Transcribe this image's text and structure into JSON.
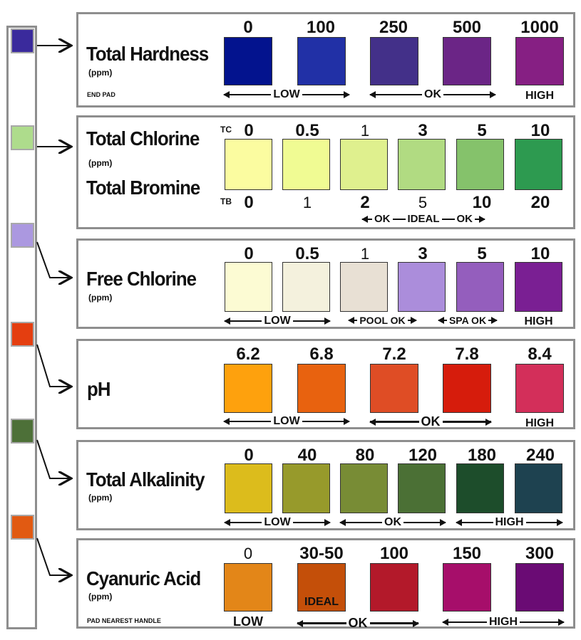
{
  "strip": {
    "pads": [
      {
        "name": "total-hardness",
        "color": "#3a2a9c"
      },
      {
        "name": "total-chlorine",
        "color": "#aedc8c"
      },
      {
        "name": "free-chlorine",
        "color": "#ab98e0"
      },
      {
        "name": "ph",
        "color": "#e43e10"
      },
      {
        "name": "total-alkalinity",
        "color": "#4d7038"
      },
      {
        "name": "cyanuric-acid",
        "color": "#e15a12"
      }
    ]
  },
  "panels": {
    "hardness": {
      "title": "Total Hardness",
      "unit": "(ppm)",
      "note": "END PAD",
      "values": [
        "0",
        "100",
        "250",
        "500",
        "1000"
      ],
      "colors": [
        "#03138e",
        "#2130a6",
        "#433089",
        "#6b2586",
        "#861f83"
      ],
      "ranges": {
        "low": "LOW",
        "ok": "OK",
        "high": "HIGH"
      }
    },
    "chlorine": {
      "title1": "Total Chlorine",
      "unit": "(ppm)",
      "title2": "Total Bromine",
      "tc_tag": "TC",
      "tb_tag": "TB",
      "tc_values": [
        "0",
        "0.5",
        "1",
        "3",
        "5",
        "10"
      ],
      "tb_values": [
        "0",
        "1",
        "2",
        "5",
        "10",
        "20"
      ],
      "colors": [
        "#fbfca0",
        "#f0fb93",
        "#dff08e",
        "#b1db82",
        "#85c26b",
        "#2d9a50"
      ],
      "range": {
        "ok1": "OK",
        "ideal": "IDEAL",
        "ok2": "OK"
      }
    },
    "free_chlorine": {
      "title": "Free Chlorine",
      "unit": "(ppm)",
      "values": [
        "0",
        "0.5",
        "1",
        "3",
        "5",
        "10"
      ],
      "colors": [
        "#fcfbd3",
        "#f4f1dd",
        "#e8e0d4",
        "#ab8ddb",
        "#945ebd",
        "#7a1f93"
      ],
      "ranges": {
        "low": "LOW",
        "pool": "POOL OK",
        "spa": "SPA OK",
        "high": "HIGH"
      }
    },
    "ph": {
      "title": "pH",
      "values": [
        "6.2",
        "6.8",
        "7.2",
        "7.8",
        "8.4"
      ],
      "colors": [
        "#fea10d",
        "#e8620f",
        "#df4d25",
        "#d61c0c",
        "#d32f5a"
      ],
      "ranges": {
        "low": "LOW",
        "ok": "OK",
        "high": "HIGH"
      }
    },
    "alkalinity": {
      "title": "Total Alkalinity",
      "unit": "(ppm)",
      "values": [
        "0",
        "40",
        "80",
        "120",
        "180",
        "240"
      ],
      "colors": [
        "#dcbc1c",
        "#979a2b",
        "#788c35",
        "#4b7035",
        "#1d4d2b",
        "#1e4250"
      ],
      "ranges": {
        "low": "LOW",
        "ok": "OK",
        "high": "HIGH"
      }
    },
    "cyanuric": {
      "title": "Cyanuric Acid",
      "unit": "(ppm)",
      "note": "PAD NEAREST HANDLE",
      "values": [
        "0",
        "30-50",
        "100",
        "150",
        "300"
      ],
      "colors": [
        "#e38618",
        "#c44f09",
        "#b3192a",
        "#a60e6a",
        "#6a0b74"
      ],
      "ideal_label": "IDEAL",
      "ranges": {
        "low": "LOW",
        "ok": "OK",
        "high": "HIGH"
      }
    }
  }
}
